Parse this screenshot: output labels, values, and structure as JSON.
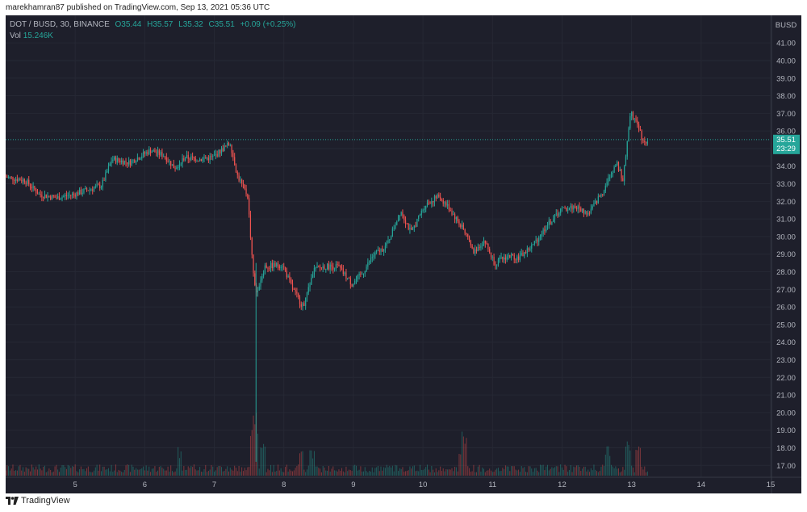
{
  "header": {
    "publisher_text": "marekhamran87 published on TradingView.com, Sep 13, 2021 05:36 UTC"
  },
  "legend": {
    "symbol": "DOT / BUSD, 30, BINANCE",
    "open": "O35.44",
    "high": "H35.57",
    "low": "L35.32",
    "close": "C35.51",
    "change": "+0.09 (+0.25%)",
    "vol_label": "Vol",
    "vol_value": "15.246K"
  },
  "footer": {
    "brand": "TradingView"
  },
  "colors": {
    "background": "#1e1f2b",
    "up": "#26a69a",
    "down": "#ef5350",
    "text": "#b2b5be"
  },
  "chart_data": {
    "type": "candlestick",
    "currency_label": "BUSD",
    "last_price_label": "35.51",
    "countdown_label": "23:29",
    "last_price": 35.51,
    "y_ticks": [
      "41.00",
      "40.00",
      "39.00",
      "38.00",
      "37.00",
      "36.00",
      "35.00",
      "34.00",
      "33.00",
      "32.00",
      "31.00",
      "30.00",
      "29.00",
      "28.00",
      "27.00",
      "26.00",
      "25.00",
      "24.00",
      "23.00",
      "22.00",
      "21.00",
      "20.00",
      "19.00",
      "18.00",
      "17.00"
    ],
    "ylim": [
      16.6,
      42.2
    ],
    "x_ticks": [
      "5",
      "6",
      "7",
      "8",
      "9",
      "10",
      "11",
      "12",
      "13",
      "14",
      "15"
    ],
    "x_range_days": [
      4.0,
      15.0
    ],
    "price_path": [
      [
        4.0,
        33.4
      ],
      [
        4.3,
        33.2
      ],
      [
        4.5,
        32.4
      ],
      [
        4.75,
        32.2
      ],
      [
        5.0,
        32.4
      ],
      [
        5.4,
        32.9
      ],
      [
        5.55,
        34.4
      ],
      [
        5.8,
        34.2
      ],
      [
        6.1,
        34.9
      ],
      [
        6.3,
        34.6
      ],
      [
        6.45,
        33.9
      ],
      [
        6.6,
        34.5
      ],
      [
        6.8,
        34.4
      ],
      [
        7.0,
        34.5
      ],
      [
        7.15,
        35.0
      ],
      [
        7.25,
        35.3
      ],
      [
        7.35,
        33.5
      ],
      [
        7.5,
        32.3
      ],
      [
        7.58,
        28.0
      ],
      [
        7.62,
        26.8
      ],
      [
        7.75,
        28.3
      ],
      [
        8.0,
        28.4
      ],
      [
        8.15,
        27.0
      ],
      [
        8.3,
        26.0
      ],
      [
        8.45,
        28.1
      ],
      [
        8.6,
        28.3
      ],
      [
        8.8,
        28.3
      ],
      [
        9.0,
        27.3
      ],
      [
        9.15,
        27.9
      ],
      [
        9.3,
        28.9
      ],
      [
        9.5,
        29.5
      ],
      [
        9.7,
        31.5
      ],
      [
        9.85,
        30.2
      ],
      [
        10.05,
        31.8
      ],
      [
        10.25,
        32.3
      ],
      [
        10.4,
        31.6
      ],
      [
        10.6,
        30.4
      ],
      [
        10.75,
        29.1
      ],
      [
        10.9,
        29.8
      ],
      [
        11.05,
        28.5
      ],
      [
        11.25,
        28.9
      ],
      [
        11.4,
        28.8
      ],
      [
        11.6,
        29.5
      ],
      [
        11.8,
        30.6
      ],
      [
        12.0,
        31.5
      ],
      [
        12.2,
        31.7
      ],
      [
        12.4,
        31.3
      ],
      [
        12.6,
        32.5
      ],
      [
        12.8,
        34.2
      ],
      [
        12.9,
        33.2
      ],
      [
        13.0,
        37.0
      ],
      [
        13.1,
        36.6
      ],
      [
        13.2,
        35.2
      ],
      [
        13.25,
        35.5
      ]
    ],
    "volume_spikes": [
      [
        6.5,
        0.45
      ],
      [
        7.55,
        0.8
      ],
      [
        7.6,
        1.0
      ],
      [
        7.7,
        0.6
      ],
      [
        8.25,
        0.55
      ],
      [
        8.4,
        0.4
      ],
      [
        10.6,
        0.75
      ],
      [
        10.55,
        0.45
      ],
      [
        12.65,
        0.5
      ],
      [
        12.95,
        0.55
      ],
      [
        13.1,
        0.6
      ]
    ]
  }
}
